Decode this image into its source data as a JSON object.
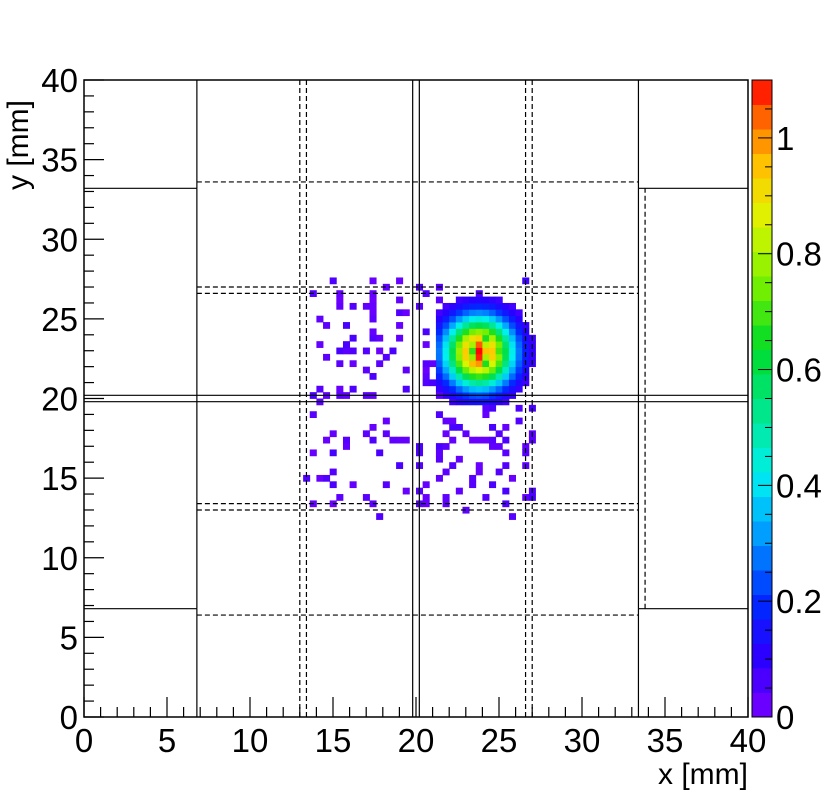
{
  "chart_data": {
    "type": "heatmap",
    "title": "",
    "xlabel": "x [mm]",
    "ylabel": "y [mm]",
    "xlim": [
      0,
      40
    ],
    "ylim": [
      0,
      40
    ],
    "zlim": [
      0,
      1.1
    ],
    "x_ticks": [
      "0",
      "5",
      "10",
      "15",
      "20",
      "25",
      "30",
      "35",
      "40"
    ],
    "y_ticks": [
      "0",
      "5",
      "10",
      "15",
      "20",
      "25",
      "30",
      "35",
      "40"
    ],
    "z_ticks": [
      "0",
      "0.2",
      "0.4",
      "0.6",
      "0.8",
      "1"
    ],
    "z_tick_values": [
      0,
      0.2,
      0.4,
      0.6,
      0.8,
      1.0
    ],
    "colorbar": "rainbow palette, right side",
    "grid": false,
    "bin_width_mm": 0.4,
    "hotspot": {
      "x": 23.8,
      "y": 22.7,
      "peak": 1.1
    },
    "cells": [
      [
        23.8,
        22.7,
        1.1
      ],
      [
        24.2,
        22.7,
        0.95
      ],
      [
        23.4,
        22.7,
        0.9
      ],
      [
        23.8,
        22.3,
        0.92
      ],
      [
        23.8,
        23.1,
        0.9
      ],
      [
        24.2,
        23.1,
        0.82
      ],
      [
        23.4,
        23.1,
        0.8
      ],
      [
        24.2,
        22.3,
        0.8
      ],
      [
        23.4,
        22.3,
        0.78
      ],
      [
        24.6,
        22.7,
        0.7
      ],
      [
        23.0,
        22.7,
        0.68
      ],
      [
        23.8,
        23.5,
        0.66
      ],
      [
        23.8,
        21.9,
        0.66
      ],
      [
        15.0,
        26.4,
        0.03
      ],
      [
        16.2,
        25.6,
        0.05
      ],
      [
        17.0,
        24.8,
        0.04
      ],
      [
        14.2,
        23.2,
        0.03
      ],
      [
        18.2,
        22.4,
        0.05
      ],
      [
        16.6,
        21.6,
        0.04
      ],
      [
        15.4,
        20.0,
        0.03
      ],
      [
        14.2,
        19.6,
        0.04
      ],
      [
        17.8,
        18.4,
        0.03
      ],
      [
        16.6,
        17.6,
        0.04
      ],
      [
        19.0,
        17.2,
        0.03
      ],
      [
        14.6,
        15.2,
        0.05
      ],
      [
        16.2,
        14.4,
        0.03
      ],
      [
        15.0,
        13.6,
        0.04
      ],
      [
        17.4,
        13.2,
        0.04
      ],
      [
        13.4,
        13.2,
        0.03
      ],
      [
        21.0,
        16.4,
        0.04
      ],
      [
        22.2,
        15.6,
        0.05
      ],
      [
        25.4,
        17.2,
        0.06
      ],
      [
        26.2,
        16.4,
        0.05
      ],
      [
        24.6,
        15.2,
        0.05
      ],
      [
        26.6,
        14.0,
        0.06
      ],
      [
        24.2,
        13.6,
        0.05
      ],
      [
        25.4,
        13.2,
        0.06
      ],
      [
        22.6,
        12.8,
        0.04
      ],
      [
        26.6,
        13.4,
        0.07
      ],
      [
        21.4,
        26.8,
        0.05
      ],
      [
        26.2,
        27.2,
        0.08
      ]
    ]
  }
}
